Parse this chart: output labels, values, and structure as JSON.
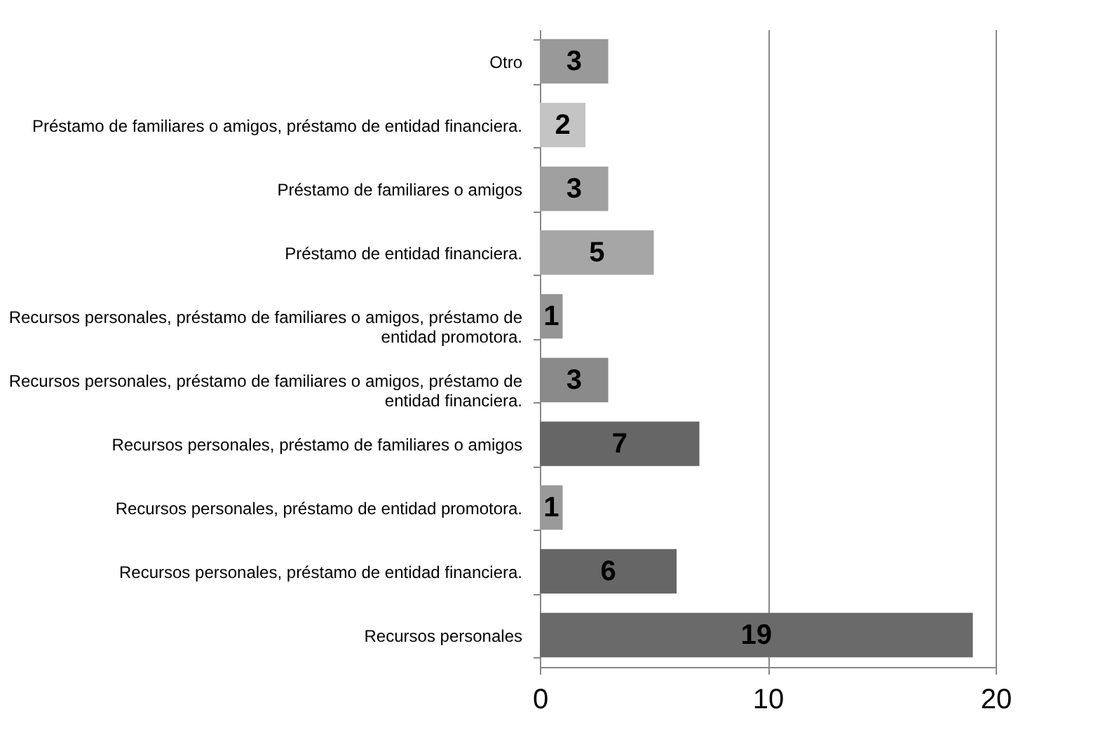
{
  "chart_data": {
    "type": "bar",
    "orientation": "horizontal",
    "categories": [
      "Otro",
      "Préstamo de familiares o amigos, préstamo de entidad financiera.",
      "Préstamo de familiares o amigos",
      "Préstamo de entidad financiera.",
      "Recursos personales, préstamo de familiares o amigos, préstamo de entidad promotora.",
      "Recursos personales, préstamo de familiares o amigos, préstamo de entidad financiera.",
      "Recursos personales, préstamo de familiares o amigos",
      "Recursos personales, préstamo de entidad promotora.",
      "Recursos personales, préstamo de entidad financiera.",
      "Recursos personales"
    ],
    "values": [
      3,
      2,
      3,
      5,
      1,
      3,
      7,
      1,
      6,
      19
    ],
    "colors": [
      "#999999",
      "#c4c4c4",
      "#a0a0a0",
      "#a6a6a6",
      "#959595",
      "#8a8a8a",
      "#666666",
      "#9a9a9a",
      "#666666",
      "#6a6a6a"
    ],
    "xlim": [
      0,
      20
    ],
    "xticks": [
      0,
      10,
      20
    ],
    "grid": "x",
    "data_labels": true
  }
}
